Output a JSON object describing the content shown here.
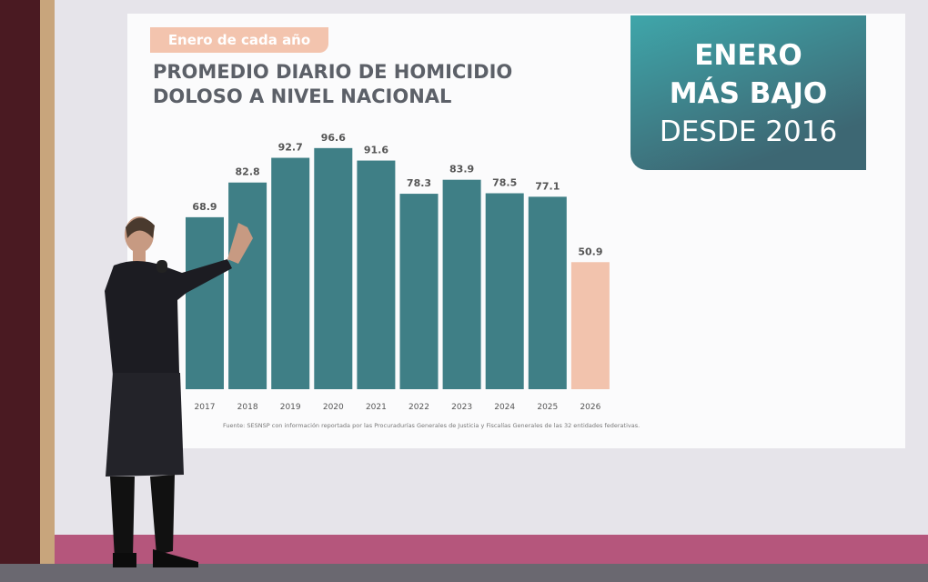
{
  "chart_data": {
    "type": "bar",
    "tag": "Enero de cada año",
    "title": "PROMEDIO DIARIO DE HOMICIDIO DOLOSO A NIVEL NACIONAL",
    "annotation": [
      "ENERO",
      "MÁS BAJO",
      "DESDE 2016"
    ],
    "categories": [
      "2017",
      "2018",
      "2019",
      "2020",
      "2021",
      "2022",
      "2023",
      "2024",
      "2025",
      "2026"
    ],
    "values": [
      68.9,
      82.8,
      92.7,
      96.6,
      91.6,
      78.3,
      83.9,
      78.5,
      77.1,
      50.9
    ],
    "colors": [
      "#3f7f86",
      "#3f7f86",
      "#3f7f86",
      "#3f7f86",
      "#3f7f86",
      "#3f7f86",
      "#3f7f86",
      "#3f7f86",
      "#3f7f86",
      "#f2c3ad"
    ],
    "source": "Fuente: SESNSP con información reportada por las Procuradurías Generales de Justicia y Fiscalías Generales de las 32 entidades federativas."
  }
}
